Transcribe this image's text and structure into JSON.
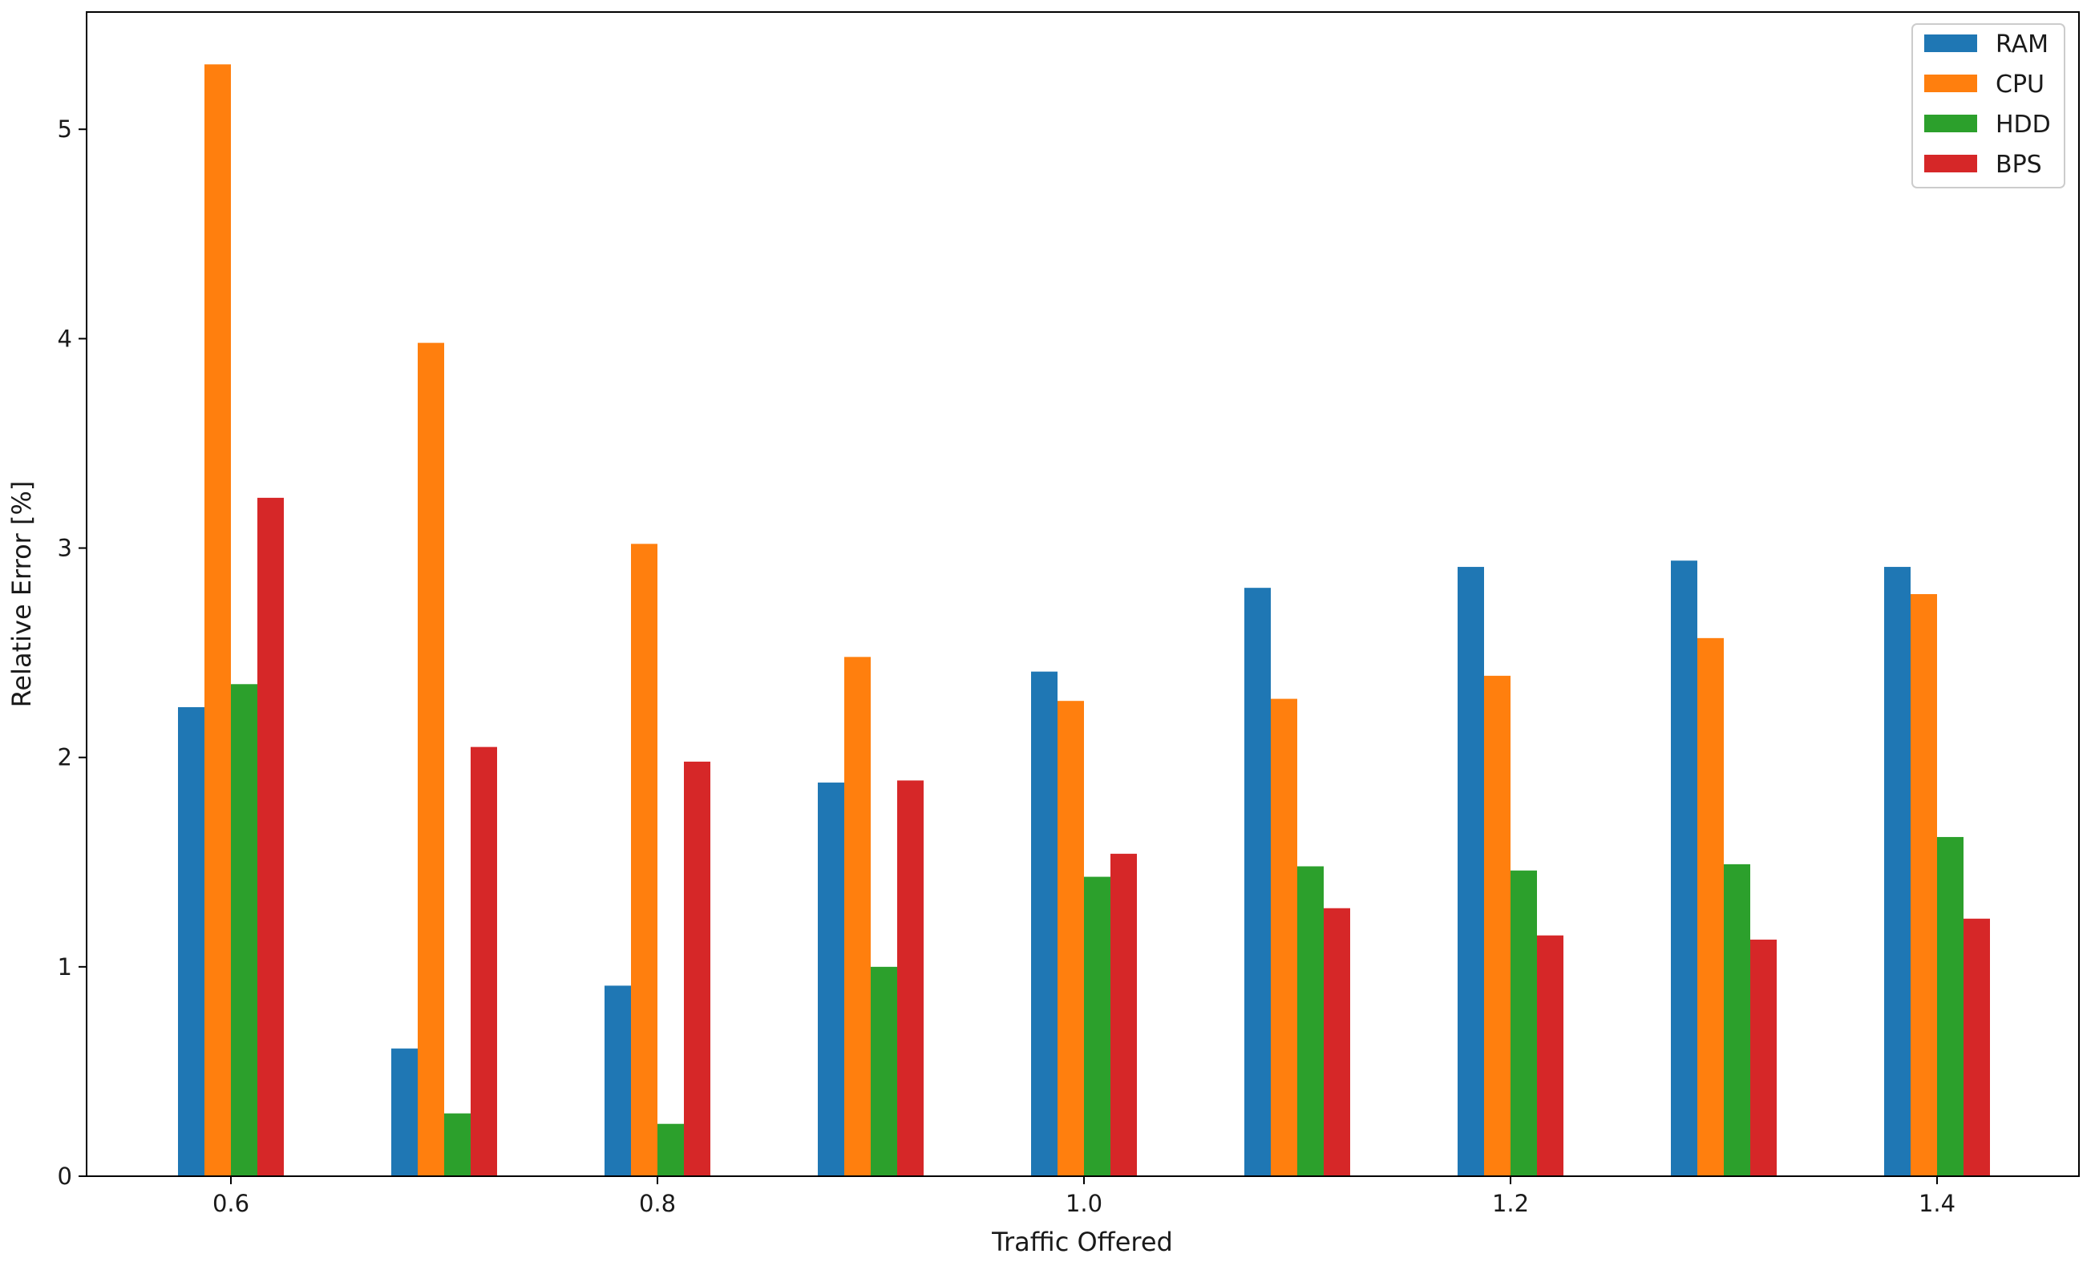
{
  "chart_data": {
    "type": "bar",
    "xlabel": "Traffic Offered",
    "ylabel": "Relative Error [%]",
    "x_ticks": [
      "0.6",
      "0.8",
      "1.0",
      "1.2",
      "1.4"
    ],
    "y_ticks": [
      "0",
      "1",
      "2",
      "3",
      "4",
      "5"
    ],
    "ylim": [
      0,
      5.56
    ],
    "grid": false,
    "legend_position": "top-right",
    "categories": [
      0.6,
      0.7,
      0.8,
      0.9,
      1.0,
      1.1,
      1.2,
      1.3,
      1.4
    ],
    "series": [
      {
        "name": "RAM",
        "color": "#1f77b4",
        "values": [
          2.24,
          0.61,
          0.91,
          1.88,
          2.41,
          2.81,
          2.91,
          2.94,
          2.91
        ]
      },
      {
        "name": "CPU",
        "color": "#ff7f0e",
        "values": [
          5.31,
          3.98,
          3.02,
          2.48,
          2.27,
          2.28,
          2.39,
          2.57,
          2.78
        ]
      },
      {
        "name": "HDD",
        "color": "#2ca02c",
        "values": [
          2.35,
          0.3,
          0.25,
          1.0,
          1.43,
          1.48,
          1.46,
          1.49,
          1.62
        ]
      },
      {
        "name": "BPS",
        "color": "#d62728",
        "values": [
          3.24,
          2.05,
          1.98,
          1.89,
          1.54,
          1.28,
          1.15,
          1.13,
          1.23
        ]
      }
    ]
  }
}
